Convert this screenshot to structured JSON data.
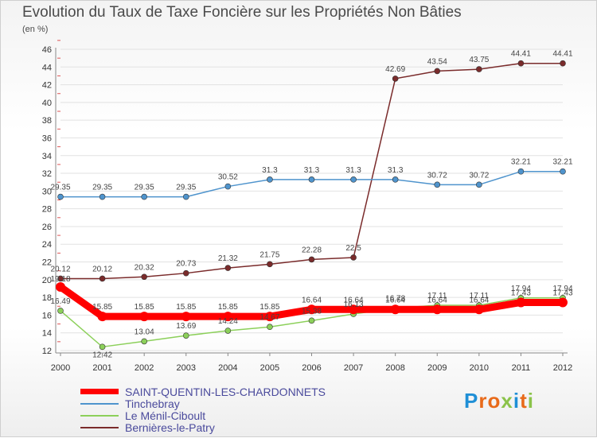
{
  "title": "Evolution du Taux de Taxe Foncière sur les Propriétés Non Bâties",
  "unit_label": "(en %)",
  "logo_text": "Proxiti",
  "chart_data": {
    "type": "line",
    "title": "Evolution du Taux de Taxe Foncière sur les Propriétés Non Bâties",
    "ylabel": "(en %)",
    "x": [
      "2000",
      "2001",
      "2002",
      "2003",
      "2004",
      "2005",
      "2006",
      "2007",
      "2008",
      "2009",
      "2010",
      "2011",
      "2012"
    ],
    "ylim": [
      12,
      46
    ],
    "yticks": [
      12,
      14,
      16,
      18,
      20,
      22,
      24,
      26,
      28,
      30,
      32,
      34,
      36,
      38,
      40,
      42,
      44,
      46
    ],
    "grid": "y",
    "legend_position": "bottom-left",
    "series": [
      {
        "name": "SAINT-QUENTIN-LES-CHARDONNETS",
        "color": "#ff0000",
        "values": [
          19.18,
          15.85,
          15.85,
          15.85,
          15.85,
          15.85,
          16.64,
          16.64,
          16.64,
          16.64,
          16.64,
          17.43,
          17.43
        ]
      },
      {
        "name": "Tinchebray",
        "color": "#4f94cd",
        "values": [
          29.35,
          29.35,
          29.35,
          29.35,
          30.52,
          31.3,
          31.3,
          31.3,
          31.3,
          30.72,
          30.72,
          32.21,
          32.21
        ]
      },
      {
        "name": "Le Ménil-Ciboult",
        "color": "#8cd05a",
        "values": [
          16.49,
          12.42,
          13.04,
          13.69,
          14.24,
          14.67,
          15.38,
          16.13,
          16.78,
          17.11,
          17.11,
          17.94,
          17.94
        ]
      },
      {
        "name": "Bernières-le-Patry",
        "color": "#7a2b2b",
        "values": [
          20.12,
          20.12,
          20.32,
          20.73,
          21.32,
          21.75,
          22.28,
          22.5,
          42.69,
          43.54,
          43.75,
          44.41,
          44.41
        ]
      }
    ]
  }
}
